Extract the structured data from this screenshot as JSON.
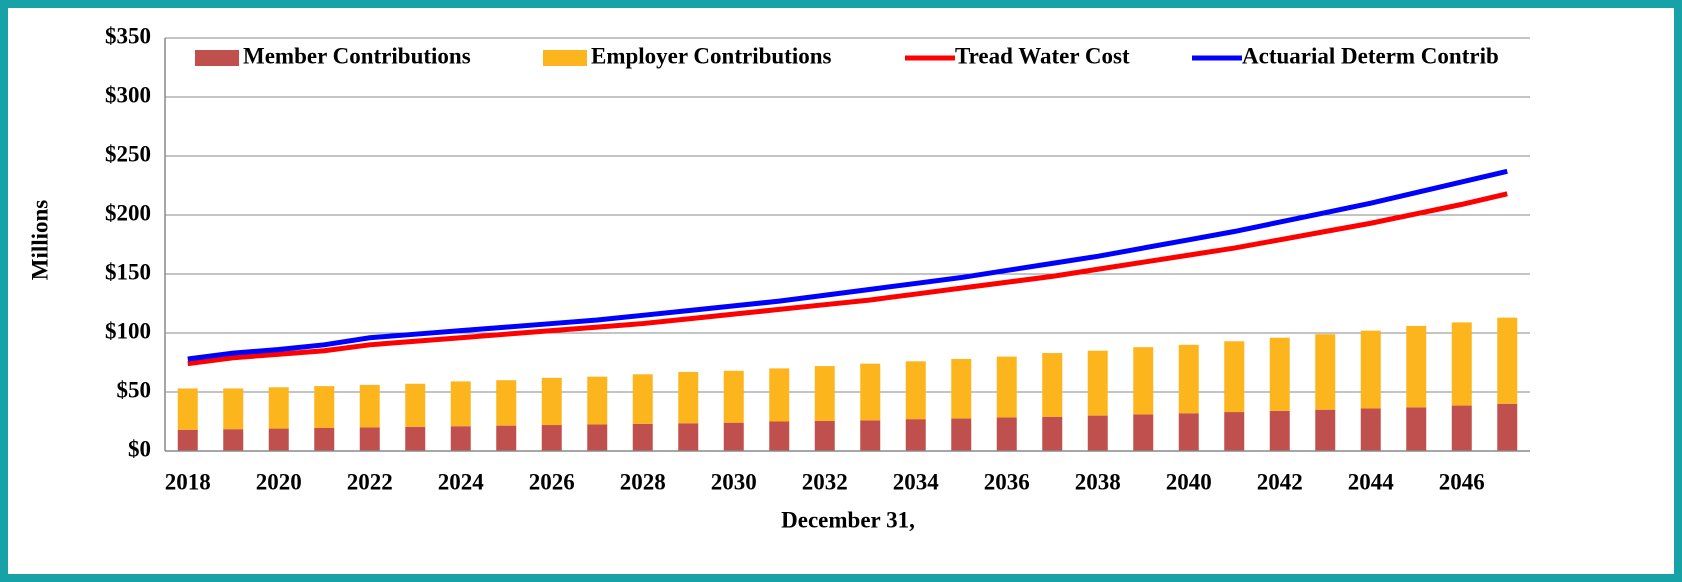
{
  "chart_data": {
    "type": "bar",
    "stacked": true,
    "categories": [
      "2018",
      null,
      "2020",
      null,
      "2022",
      null,
      "2024",
      null,
      "2026",
      null,
      "2028",
      null,
      "2030",
      null,
      "2032",
      null,
      "2034",
      null,
      "2036",
      null,
      "2038",
      null,
      "2040",
      null,
      "2042",
      null,
      "2044",
      null,
      "2046",
      null
    ],
    "series": [
      {
        "name": "Member Contributions",
        "type": "bar",
        "color": "#c0504d",
        "values": [
          18,
          18.5,
          19,
          19.5,
          20,
          20.5,
          21,
          21.5,
          22,
          22.5,
          23,
          23.5,
          24,
          25,
          25.5,
          26,
          27,
          27.5,
          28.5,
          29,
          30,
          31,
          32,
          33,
          34,
          35,
          36,
          37,
          38.5,
          40
        ]
      },
      {
        "name": "Employer Contributions",
        "type": "bar",
        "color": "#fdb51e",
        "values": [
          35,
          34.5,
          35,
          35.5,
          36,
          36.5,
          38,
          38.5,
          40,
          40.5,
          42,
          43.5,
          44,
          45,
          46.5,
          48,
          49,
          50.5,
          51.5,
          54,
          55,
          57,
          58,
          60,
          62,
          64,
          66,
          69,
          70.5,
          73
        ]
      },
      {
        "name": "Tread Water Cost",
        "type": "line",
        "color": "#ff0000",
        "values": [
          74,
          79,
          82,
          85,
          90,
          93,
          96,
          99,
          102,
          105,
          108,
          112,
          116,
          120,
          124,
          128,
          133,
          138,
          143,
          148,
          154,
          160,
          166,
          172,
          179,
          186,
          193,
          201,
          209,
          218
        ]
      },
      {
        "name": "Actuarial Determ Contrib",
        "type": "line",
        "color": "#0000ff",
        "values": [
          78,
          83,
          86,
          90,
          96,
          99,
          102,
          105,
          108,
          111,
          115,
          119,
          123,
          127,
          132,
          137,
          142,
          147,
          153,
          159,
          165,
          172,
          179,
          186,
          194,
          202,
          210,
          219,
          228,
          237
        ]
      }
    ],
    "xlabel": "December 31,",
    "ylabel": "Millions",
    "ylim": [
      0,
      350
    ],
    "yticks": [
      {
        "value": 0,
        "label": "$0"
      },
      {
        "value": 50,
        "label": "$50"
      },
      {
        "value": 100,
        "label": "$100"
      },
      {
        "value": 150,
        "label": "$150"
      },
      {
        "value": 200,
        "label": "$200"
      },
      {
        "value": 250,
        "label": "$250"
      },
      {
        "value": 300,
        "label": "$300"
      },
      {
        "value": 350,
        "label": "$350"
      }
    ],
    "grid": true,
    "legend": "top"
  }
}
